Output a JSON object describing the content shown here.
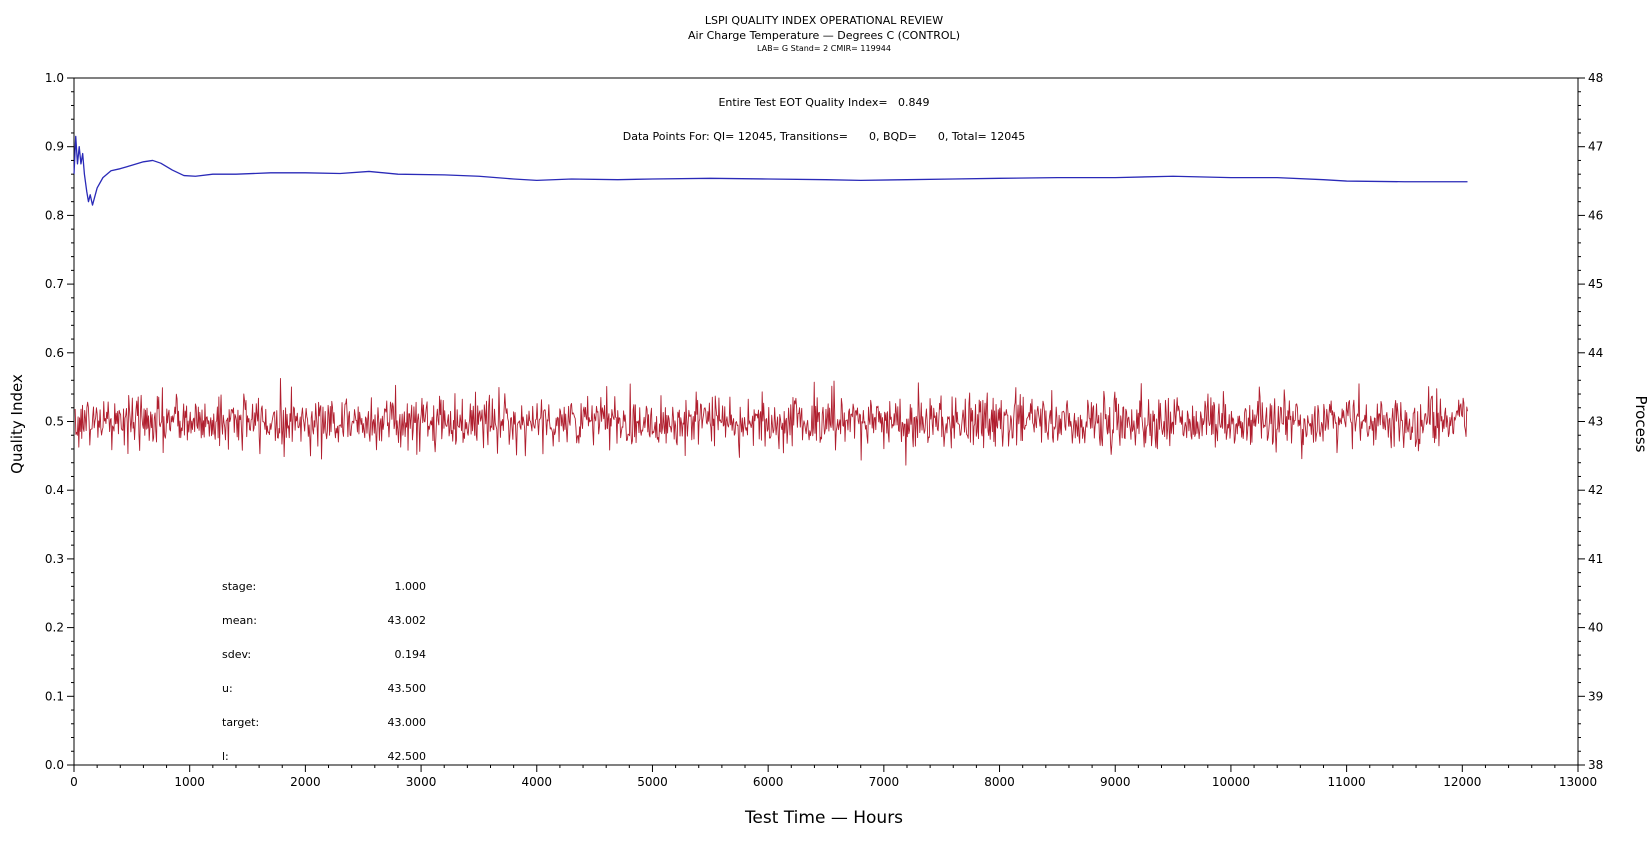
{
  "chart_data": {
    "type": "line",
    "title": "LSPI QUALITY INDEX OPERATIONAL REVIEW",
    "subtitle": "Air Charge Temperature — Degrees C (CONTROL)",
    "subtitle2": "LAB= G Stand= 2 CMIR= 119944",
    "xlabel": "Test Time — Hours",
    "ylabel": "Quality Index",
    "y2label": "Process",
    "xlim": [
      0,
      13000
    ],
    "ylim": [
      0.0,
      1.0
    ],
    "y2lim": [
      38,
      48
    ],
    "x_ticks": [
      0,
      1000,
      2000,
      3000,
      4000,
      5000,
      6000,
      7000,
      8000,
      9000,
      10000,
      11000,
      12000,
      13000
    ],
    "y_ticks": [
      "0.0",
      "0.1",
      "0.2",
      "0.3",
      "0.4",
      "0.5",
      "0.6",
      "0.7",
      "0.8",
      "0.9",
      "1.0"
    ],
    "y2_ticks": [
      38,
      39,
      40,
      41,
      42,
      43,
      44,
      45,
      46,
      47,
      48
    ],
    "grid": false,
    "legend": "none",
    "annotations": {
      "eot_line": "Entire Test EOT Quality Index=   0.849",
      "points_line": "Data Points For: QI= 12045, Transitions=      0, BQD=      0, Total= 12045"
    },
    "stats": [
      {
        "label": "stage:",
        "value": "1.000"
      },
      {
        "label": "mean:",
        "value": "43.002"
      },
      {
        "label": "sdev:",
        "value": "0.194"
      },
      {
        "label": "u:",
        "value": "43.500"
      },
      {
        "label": "target:",
        "value": "43.000"
      },
      {
        "label": "l:",
        "value": "42.500"
      }
    ],
    "series": [
      {
        "color": "#2a2ab8",
        "axis": "left",
        "points": [
          [
            0,
            0.86
          ],
          [
            15,
            0.915
          ],
          [
            30,
            0.875
          ],
          [
            45,
            0.9
          ],
          [
            60,
            0.875
          ],
          [
            75,
            0.89
          ],
          [
            90,
            0.86
          ],
          [
            110,
            0.835
          ],
          [
            125,
            0.82
          ],
          [
            140,
            0.83
          ],
          [
            160,
            0.815
          ],
          [
            200,
            0.84
          ],
          [
            250,
            0.855
          ],
          [
            320,
            0.865
          ],
          [
            400,
            0.868
          ],
          [
            500,
            0.873
          ],
          [
            600,
            0.878
          ],
          [
            680,
            0.88
          ],
          [
            750,
            0.876
          ],
          [
            850,
            0.866
          ],
          [
            950,
            0.858
          ],
          [
            1050,
            0.857
          ],
          [
            1200,
            0.86
          ],
          [
            1400,
            0.86
          ],
          [
            1700,
            0.862
          ],
          [
            2000,
            0.862
          ],
          [
            2300,
            0.861
          ],
          [
            2550,
            0.864
          ],
          [
            2800,
            0.86
          ],
          [
            3200,
            0.859
          ],
          [
            3500,
            0.857
          ],
          [
            3800,
            0.853
          ],
          [
            4000,
            0.851
          ],
          [
            4300,
            0.853
          ],
          [
            4700,
            0.852
          ],
          [
            5000,
            0.853
          ],
          [
            5500,
            0.854
          ],
          [
            6000,
            0.853
          ],
          [
            6500,
            0.852
          ],
          [
            6800,
            0.851
          ],
          [
            7200,
            0.852
          ],
          [
            7600,
            0.853
          ],
          [
            8000,
            0.854
          ],
          [
            8500,
            0.855
          ],
          [
            9000,
            0.855
          ],
          [
            9500,
            0.857
          ],
          [
            10000,
            0.855
          ],
          [
            10400,
            0.855
          ],
          [
            10800,
            0.852
          ],
          [
            11000,
            0.85
          ],
          [
            11500,
            0.849
          ],
          [
            12045,
            0.849
          ]
        ]
      },
      {
        "color": "#b01e2e",
        "axis": "right",
        "mean": 43.002,
        "sdev": 0.194,
        "x_start": 10,
        "x_end": 12045,
        "n_points": 1900
      }
    ]
  }
}
